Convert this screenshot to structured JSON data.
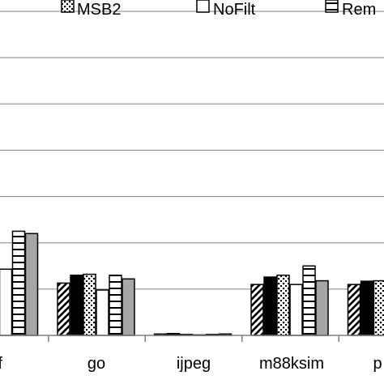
{
  "chart_data": {
    "type": "bar",
    "title": "",
    "xlabel": "",
    "ylabel": "",
    "grid": true,
    "legend_position": "top",
    "ylim": [
      0,
      7
    ],
    "categories": [
      "off",
      "go",
      "ijpeg",
      "m88ksim",
      "p"
    ],
    "series": [
      {
        "name": "",
        "pattern": "diagonal-hatch",
        "values": [
          null,
          1.13,
          0.03,
          1.1,
          1.1
        ]
      },
      {
        "name": "",
        "pattern": "solid-black",
        "values": [
          null,
          1.3,
          0.04,
          1.26,
          1.17
        ]
      },
      {
        "name": "MSB2",
        "pattern": "dotted",
        "values": [
          null,
          1.32,
          0.02,
          1.3,
          1.18
        ]
      },
      {
        "name": "NoFilt",
        "pattern": "white",
        "values": [
          1.43,
          0.98,
          0.01,
          1.1,
          null
        ]
      },
      {
        "name": "Rem",
        "pattern": "horizontal-stripes",
        "values": [
          2.25,
          1.3,
          0.02,
          1.5,
          null
        ]
      },
      {
        "name": "",
        "pattern": "solid-gray",
        "values": [
          2.2,
          1.22,
          0.03,
          1.18,
          null
        ]
      }
    ]
  }
}
